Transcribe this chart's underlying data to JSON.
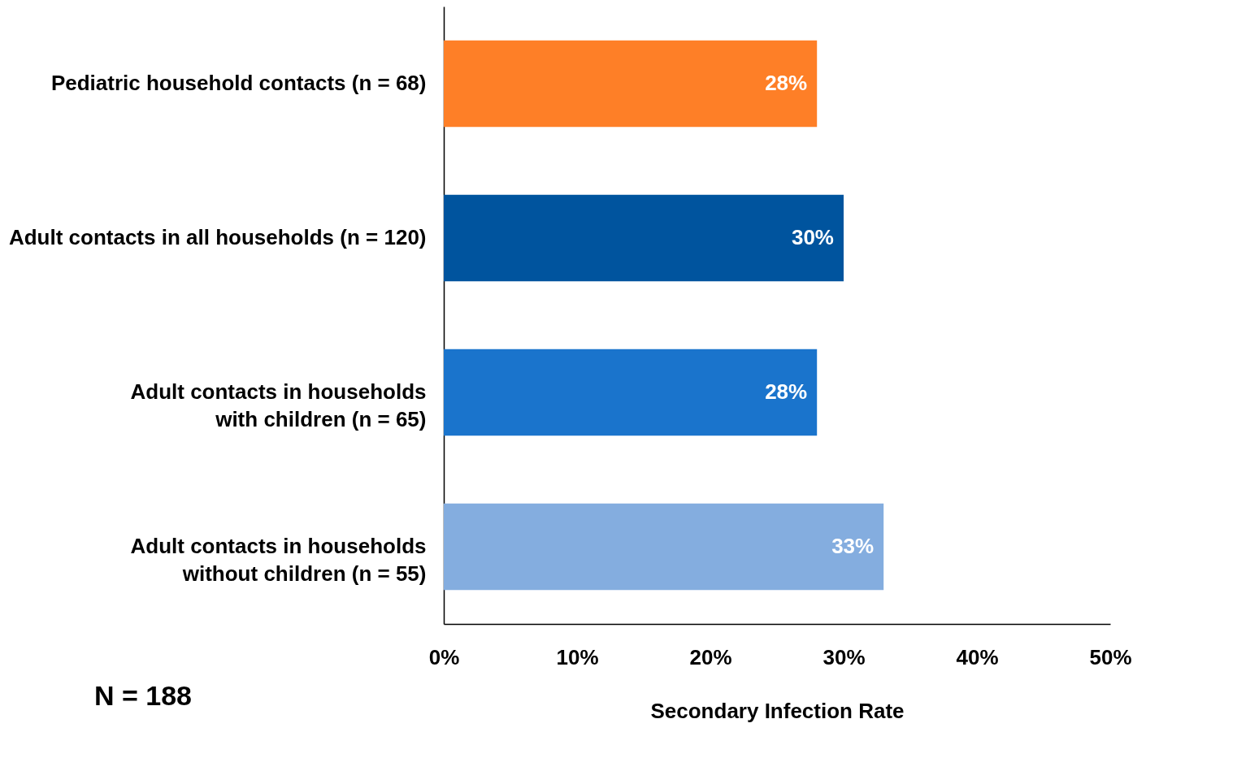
{
  "chart_data": {
    "type": "bar",
    "orientation": "horizontal",
    "xlabel": "Secondary Infection Rate",
    "categories": [
      "Pediatric household contacts (n = 68)",
      "Adult contacts in all households (n = 120)",
      "Adult contacts in households\nwith children (n = 65)",
      "Adult contacts in households\nwithout children (n = 55)"
    ],
    "values": [
      28,
      30,
      28,
      33
    ],
    "colors": [
      "#fe7f27",
      "#00549e",
      "#1a74cc",
      "#84addf"
    ],
    "value_labels": [
      "28%",
      "30%",
      "28%",
      "33%"
    ],
    "xlim": [
      0,
      50
    ],
    "xticks": [
      {
        "value": 0,
        "label": "0%"
      },
      {
        "value": 10,
        "label": "10%"
      },
      {
        "value": 20,
        "label": "20%"
      },
      {
        "value": 30,
        "label": "30%"
      },
      {
        "value": 40,
        "label": "40%"
      },
      {
        "value": 50,
        "label": "50%"
      }
    ],
    "grid": false,
    "annotations": [
      "N = 188"
    ]
  }
}
